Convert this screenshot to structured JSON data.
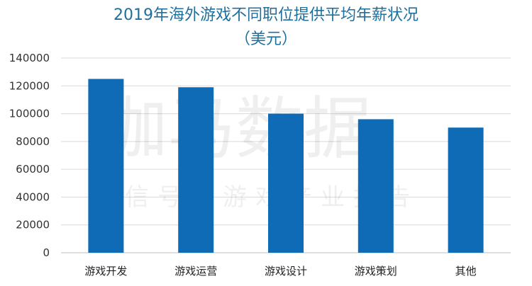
{
  "chart_data": {
    "type": "bar",
    "title": "2019年海外游戏不同职位提供平均年薪状况",
    "subtitle": "（美元）",
    "categories": [
      "游戏开发",
      "游戏运营",
      "游戏设计",
      "游戏策划",
      "其他"
    ],
    "values": [
      125000,
      119000,
      100000,
      96000,
      90000
    ],
    "ylim": [
      0,
      140000
    ],
    "yticks": [
      0,
      20000,
      40000,
      60000,
      80000,
      100000,
      120000,
      140000
    ],
    "ytick_labels": [
      "0",
      "20000",
      "40000",
      "60000",
      "80000",
      "100000",
      "120000",
      "140000"
    ],
    "grid": true,
    "bar_color": "#0f6bb5",
    "grid_color": "#d9d9d9"
  },
  "watermark": {
    "main": "伽马数据",
    "sub": "微信号：游戏产业报告"
  }
}
